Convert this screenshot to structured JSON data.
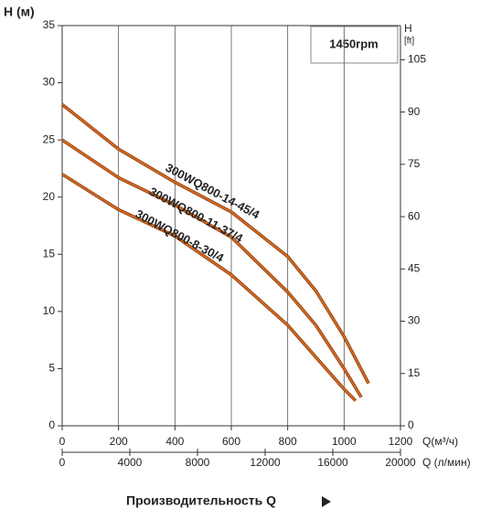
{
  "chart_data": {
    "type": "line",
    "y_label": "H (м)",
    "y2_label": "H",
    "y2_unit": "[ft]",
    "x_label": "Q(м³/ч)",
    "x2_label": "Q (л/мин)",
    "bottom_label": "Производительность Q",
    "annotation": "1450rpm",
    "xlim": [
      0,
      1200
    ],
    "xticks": [
      0,
      200,
      400,
      600,
      800,
      1000,
      1200
    ],
    "x2lim": [
      0,
      20000
    ],
    "x2ticks": [
      0,
      4000,
      8000,
      12000,
      16000,
      20000
    ],
    "ylim": [
      0,
      35
    ],
    "yticks": [
      0,
      5,
      10,
      15,
      20,
      25,
      30,
      35
    ],
    "y2lim": [
      0,
      114.8
    ],
    "y2ticks": [
      0,
      15,
      30,
      45,
      60,
      75,
      90,
      105
    ],
    "grid": "x",
    "series": [
      {
        "name": "300WQ800-14-45/4",
        "color": "#d2691e",
        "x": [
          0,
          200,
          400,
          600,
          800,
          900,
          1000,
          1087
        ],
        "values": [
          28.1,
          24.2,
          21.3,
          18.7,
          14.8,
          11.8,
          7.8,
          3.7
        ]
      },
      {
        "name": "300WQ800-11-37/4",
        "color": "#d2691e",
        "x": [
          0,
          200,
          400,
          600,
          800,
          900,
          1000,
          1061
        ],
        "values": [
          25,
          21.7,
          19.3,
          16.5,
          11.7,
          8.8,
          5.0,
          2.5
        ]
      },
      {
        "name": "300WQ800-8-30/4",
        "color": "#d2691e",
        "x": [
          0,
          200,
          400,
          600,
          800,
          900,
          1000,
          1041
        ],
        "values": [
          22,
          18.9,
          16.6,
          13.2,
          8.8,
          6.0,
          3.2,
          2.2
        ]
      }
    ]
  }
}
